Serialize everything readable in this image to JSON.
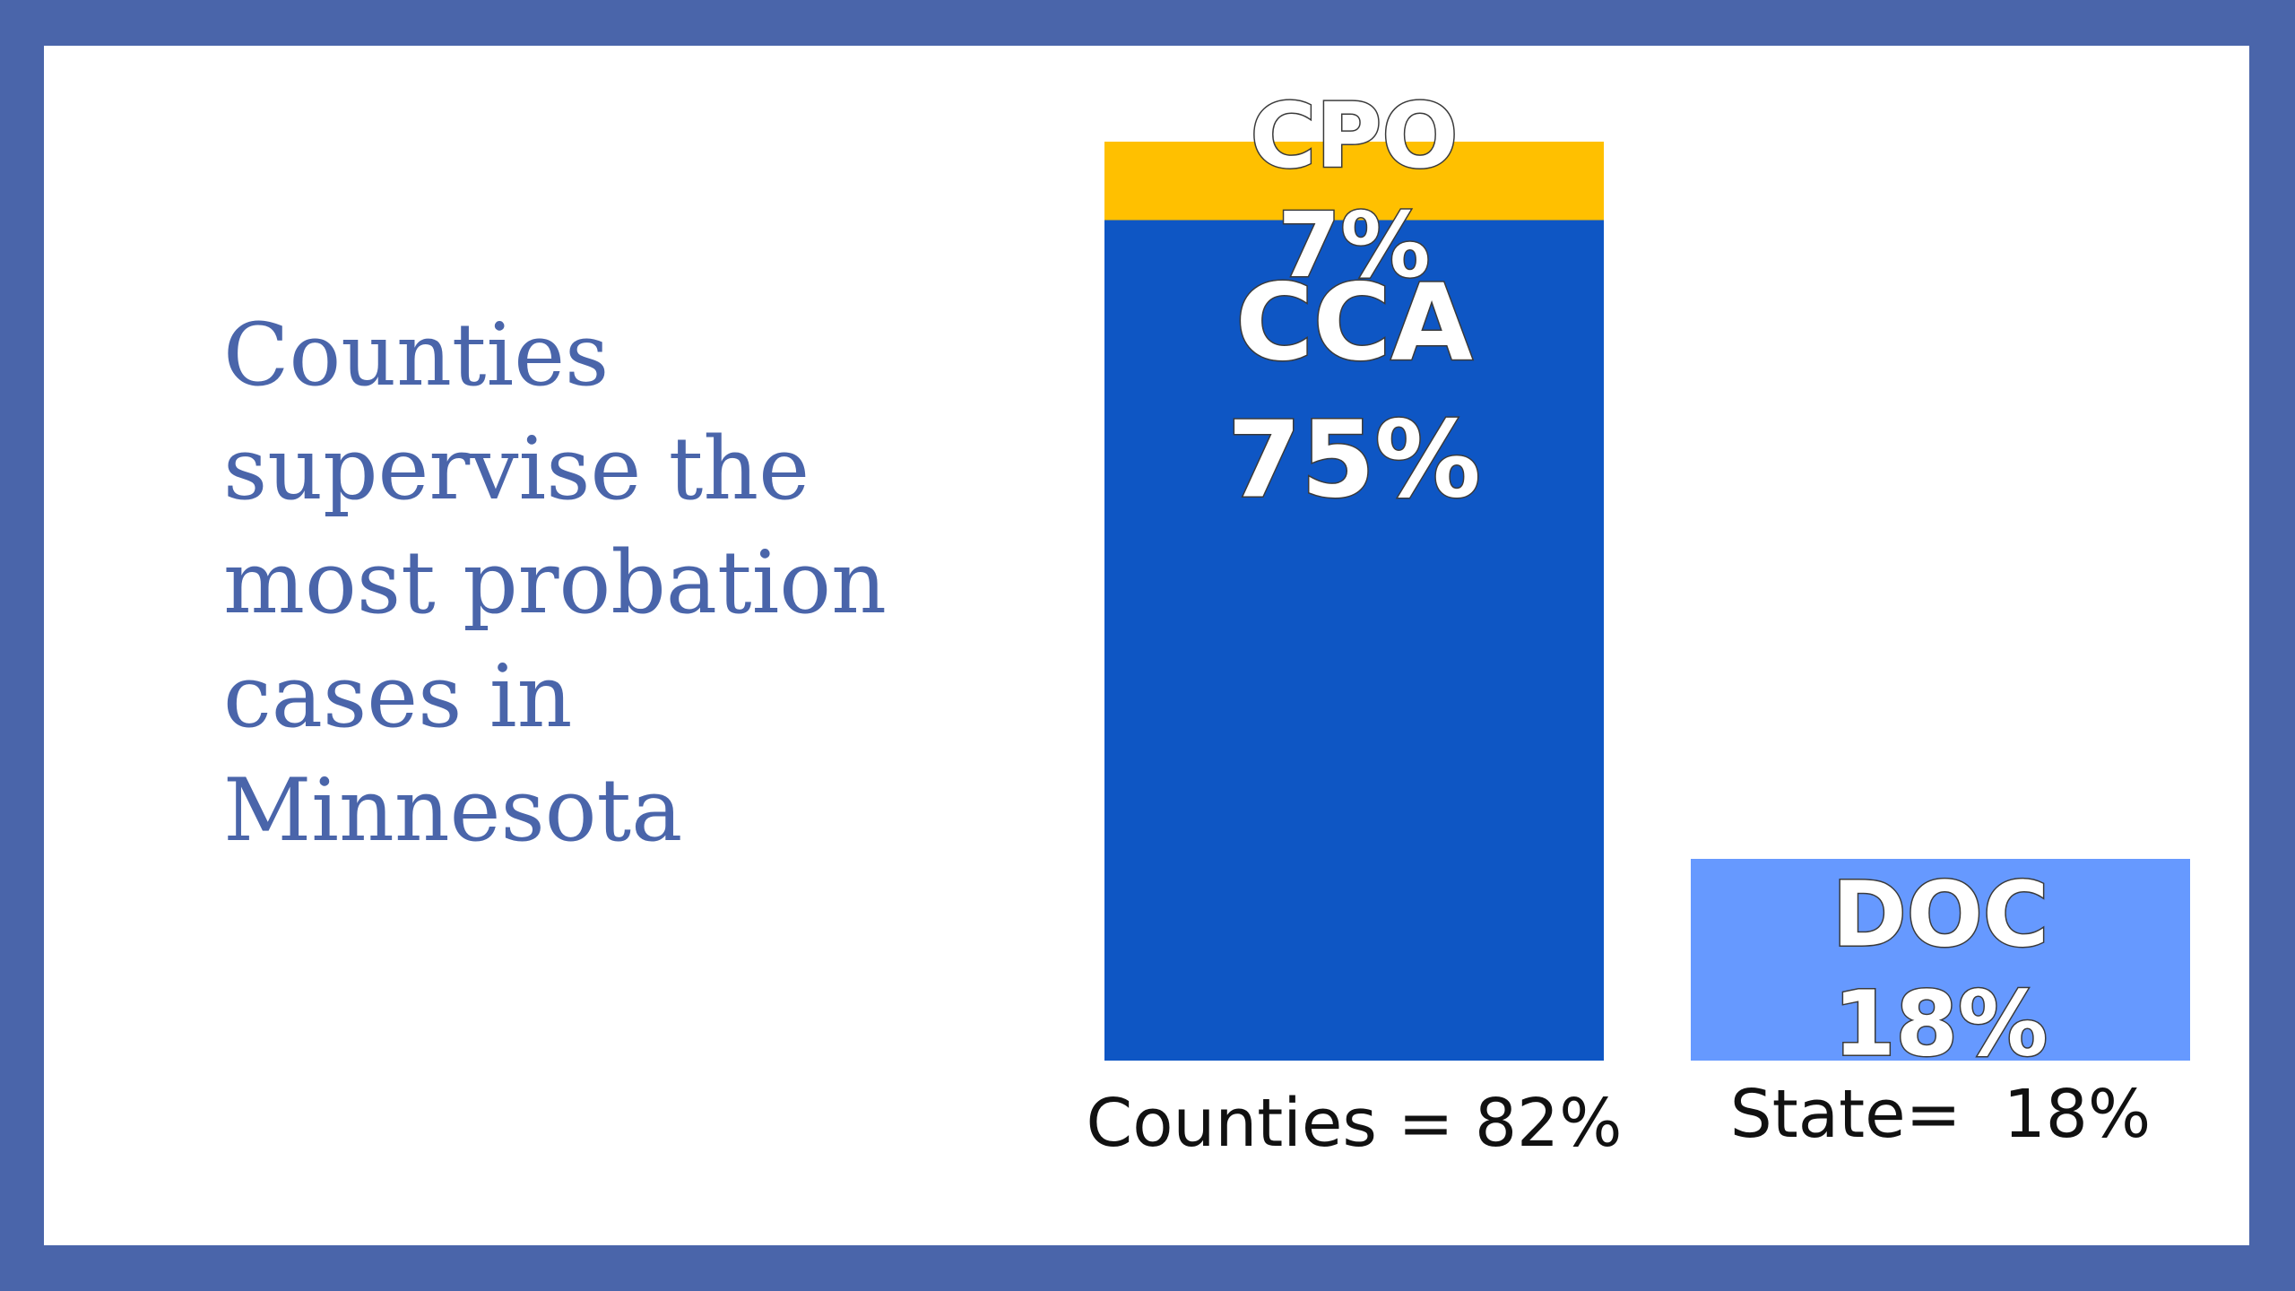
{
  "slide": {
    "headline_lines": [
      "Counties",
      "supervise the",
      "most probation",
      "cases in",
      "Minnesota"
    ],
    "colors": {
      "border": "#4a65aa",
      "background": "#ffffff",
      "headline": "#4a65aa"
    }
  },
  "chart_data": {
    "type": "bar",
    "stacked": true,
    "categories": [
      "Counties = 82%",
      "State=  18%"
    ],
    "series": [
      {
        "name": "CCA",
        "label": "75%",
        "values": [
          75,
          0
        ],
        "color": "#0e56c4"
      },
      {
        "name": "CPO",
        "label": "7%",
        "values": [
          7,
          0
        ],
        "color": "#ffc000"
      },
      {
        "name": "DOC",
        "label": "18%",
        "values": [
          0,
          18
        ],
        "color": "#6699ff"
      }
    ],
    "ylim": [
      0,
      82
    ],
    "grid": false,
    "legend": "none",
    "title": "",
    "xlabel": "",
    "ylabel": ""
  }
}
